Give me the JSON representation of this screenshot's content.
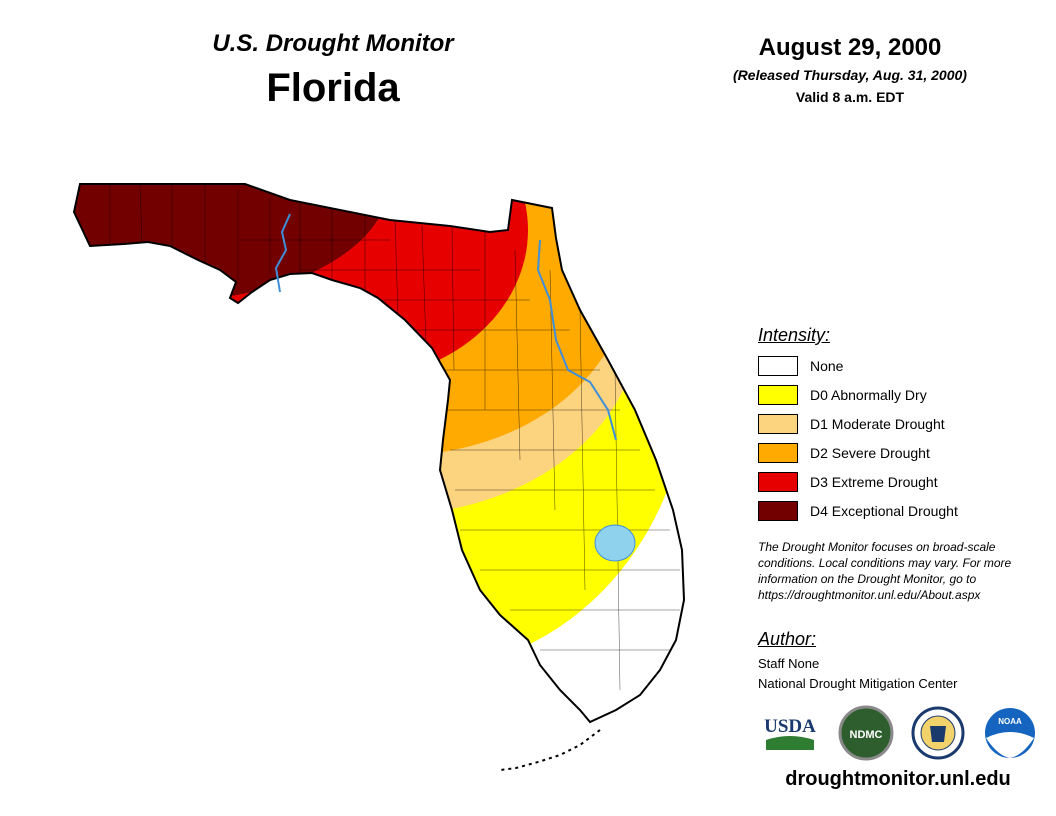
{
  "header": {
    "title": "U.S. Drought Monitor",
    "state": "Florida",
    "date": "August 29, 2000",
    "released": "(Released Thursday, Aug. 31, 2000)",
    "valid": "Valid 8 a.m. EDT"
  },
  "legend": {
    "title": "Intensity:",
    "items": [
      {
        "label": "None",
        "color": "#ffffff"
      },
      {
        "label": "D0 Abnormally Dry",
        "color": "#ffff00"
      },
      {
        "label": "D1 Moderate Drought",
        "color": "#fcd37f"
      },
      {
        "label": "D2 Severe Drought",
        "color": "#ffaa00"
      },
      {
        "label": "D3 Extreme Drought",
        "color": "#e60000"
      },
      {
        "label": "D4 Exceptional Drought",
        "color": "#730000"
      }
    ]
  },
  "note": "The Drought Monitor focuses on broad-scale conditions. Local conditions may vary. For more information on the Drought Monitor, go to https://droughtmonitor.unl.edu/About.aspx",
  "author": {
    "title": "Author:",
    "name": "Staff None",
    "org": "National Drought Mitigation Center"
  },
  "logos": {
    "usda": "USDA",
    "ndmc": "NDMC",
    "noaa": "NOAA"
  },
  "site_url": "droughtmonitor.unl.edu",
  "map_colors": {
    "water": "#8fd2ee",
    "river": "#3f8fd8",
    "border": "#000000"
  }
}
